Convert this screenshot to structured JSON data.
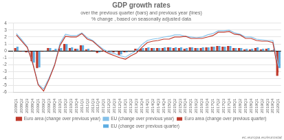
{
  "chart_data": {
    "type": "bar",
    "title": "GDP growth rates",
    "subtitle": [
      "over the previous quarter (bars) and previous year (lines)",
      "% change , based on seasonally adjusted data"
    ],
    "annotations": [
      "ec.europa.eu/eurostat"
    ],
    "categories": [
      "2008Q1",
      "2008Q2",
      "2008Q3",
      "2008Q4",
      "2009Q1",
      "2009Q2",
      "2009Q3",
      "2009Q4",
      "2010Q1",
      "2010Q2",
      "2010Q3",
      "2010Q4",
      "2011Q1",
      "2011Q2",
      "2011Q3",
      "2011Q4",
      "2012Q1",
      "2012Q2",
      "2012Q3",
      "2012Q4",
      "2013Q1",
      "2013Q2",
      "2013Q3",
      "2013Q4",
      "2014Q1",
      "2014Q2",
      "2014Q3",
      "2014Q4",
      "2015Q1",
      "2015Q2",
      "2015Q3",
      "2015Q4",
      "2016Q1",
      "2016Q2",
      "2016Q3",
      "2016Q4",
      "2017Q1",
      "2017Q2",
      "2017Q3",
      "2017Q4",
      "2018Q1",
      "2018Q2",
      "2018Q3",
      "2018Q4",
      "2019Q1",
      "2019Q2",
      "2019Q3",
      "2019Q4",
      "2020Q1"
    ],
    "series": [
      {
        "name": "Euro area (change over previous quarter)",
        "type": "bar",
        "color": "#c0392b",
        "values": [
          0.4,
          -0.1,
          -0.2,
          -1.5,
          -2.5,
          -0.1,
          0.4,
          0.1,
          0.3,
          1.0,
          0.4,
          0.3,
          0.8,
          0.2,
          0.1,
          -0.3,
          -0.1,
          -0.2,
          -0.2,
          -0.6,
          -0.2,
          -0.1,
          0.3,
          0.3,
          0.4,
          0.4,
          0.4,
          0.4,
          0.5,
          0.4,
          0.4,
          0.3,
          0.5,
          0.4,
          0.4,
          0.5,
          0.6,
          0.7,
          0.6,
          0.7,
          0.4,
          0.4,
          0.2,
          0.2,
          0.4,
          0.2,
          0.3,
          0.1,
          -3.6
        ]
      },
      {
        "name": "EU (change over previous quarter)",
        "type": "bar",
        "color": "#5dade2",
        "values": [
          0.6,
          -0.1,
          -0.2,
          -1.7,
          -2.4,
          -0.1,
          0.4,
          0.3,
          0.4,
          1.0,
          0.5,
          0.3,
          0.8,
          0.3,
          0.1,
          -0.2,
          0.0,
          -0.1,
          -0.1,
          -0.5,
          -0.2,
          0.0,
          0.3,
          0.4,
          0.5,
          0.4,
          0.4,
          0.5,
          0.5,
          0.5,
          0.5,
          0.4,
          0.5,
          0.4,
          0.5,
          0.5,
          0.6,
          0.7,
          0.6,
          0.7,
          0.4,
          0.4,
          0.3,
          0.3,
          0.5,
          0.3,
          0.4,
          0.2,
          -2.5
        ]
      },
      {
        "name": "Euro area (change over previous year)",
        "type": "line",
        "color": "#c0392b",
        "values": [
          2.3,
          1.4,
          0.5,
          -1.8,
          -4.9,
          -5.8,
          -4.1,
          -2.1,
          0.8,
          2.1,
          2.0,
          2.0,
          2.5,
          1.7,
          1.4,
          0.7,
          0.0,
          -0.4,
          -0.7,
          -1.0,
          -1.2,
          -0.7,
          -0.3,
          0.5,
          1.2,
          1.4,
          1.5,
          1.7,
          1.7,
          2.0,
          2.0,
          2.1,
          1.8,
          1.8,
          1.8,
          2.0,
          2.2,
          2.7,
          2.7,
          2.8,
          2.4,
          2.3,
          1.8,
          1.8,
          1.5,
          1.4,
          1.4,
          1.2,
          -3.1
        ]
      },
      {
        "name": "EU (change over previous year)",
        "type": "line",
        "color": "#85c1e9",
        "values": [
          2.5,
          1.6,
          0.6,
          -1.7,
          -4.8,
          -5.5,
          -3.9,
          -2.0,
          1.1,
          2.4,
          2.2,
          2.2,
          2.6,
          1.9,
          1.5,
          0.8,
          0.2,
          -0.2,
          -0.4,
          -0.7,
          -0.9,
          -0.4,
          0.0,
          0.9,
          1.5,
          1.7,
          1.8,
          2.0,
          2.1,
          2.3,
          2.3,
          2.1,
          2.0,
          1.9,
          2.0,
          2.3,
          2.5,
          2.9,
          2.9,
          3.0,
          2.6,
          2.4,
          2.0,
          2.0,
          1.7,
          1.6,
          1.5,
          1.5,
          -2.2
        ]
      }
    ],
    "ylim": [
      -6,
      4
    ],
    "yticks": [
      -6,
      -5,
      -4,
      -3,
      -2,
      -1,
      0,
      1,
      2,
      3,
      4
    ],
    "grid": true,
    "legend": "bottom"
  }
}
